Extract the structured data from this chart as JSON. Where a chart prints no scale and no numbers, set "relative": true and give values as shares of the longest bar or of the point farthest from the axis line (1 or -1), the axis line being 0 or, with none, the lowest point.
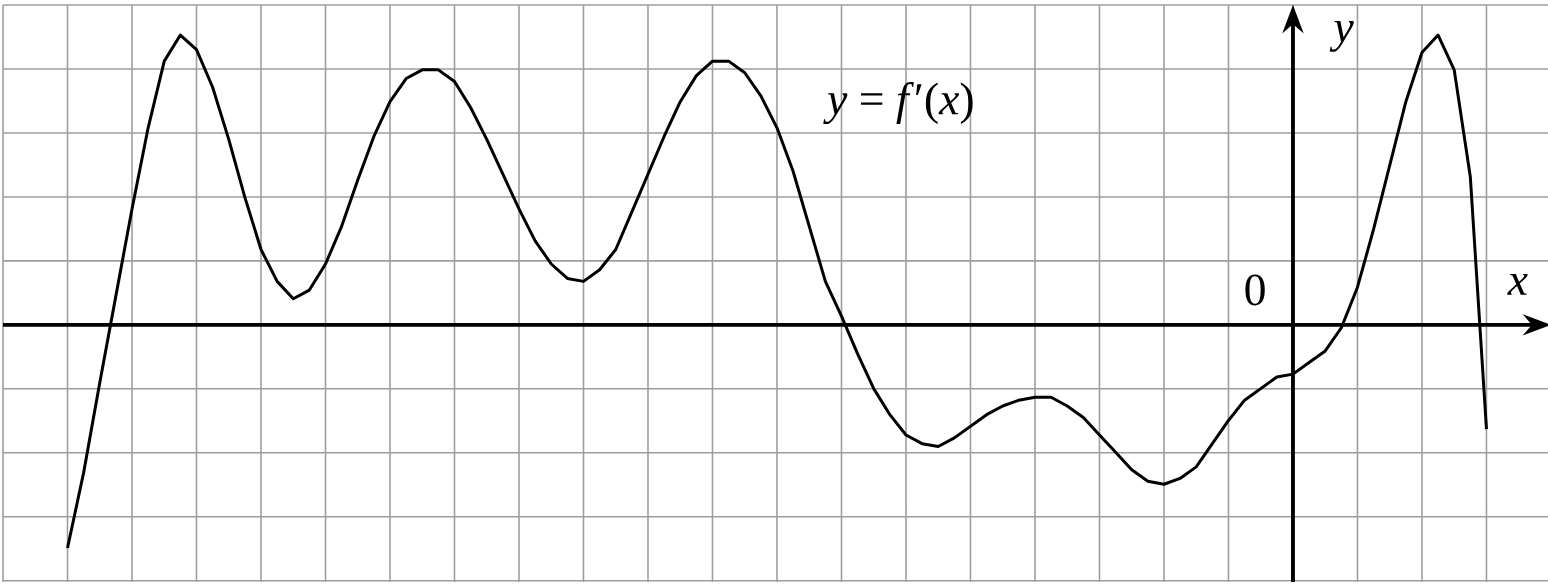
{
  "chart_data": {
    "type": "line",
    "relative": true,
    "xlabel": "x",
    "ylabel": "y",
    "annotations": [
      "0"
    ],
    "categories": [
      null,
      null,
      null,
      null,
      null,
      null,
      null,
      null,
      null,
      null,
      null,
      null,
      null,
      null,
      null,
      null,
      null,
      null,
      null,
      null,
      null,
      null,
      null,
      null,
      null,
      null,
      null,
      null,
      null,
      null,
      null,
      null,
      null,
      null,
      null,
      null,
      null,
      null,
      null,
      null,
      null,
      null,
      null,
      null,
      null,
      null,
      null,
      null,
      null,
      null,
      null,
      null,
      null,
      null,
      null,
      null,
      null,
      null,
      null,
      null,
      null,
      null,
      null,
      null,
      null,
      null,
      null,
      null,
      null,
      null,
      null,
      null,
      null,
      null,
      null,
      null,
      null,
      null,
      null,
      null,
      null,
      null,
      null,
      null,
      null,
      null,
      null,
      null,
      null
    ],
    "series": [
      {
        "name": "*y* = *f*′(*x*)",
        "color": "#000000",
        "values": [
          -0.77,
          -0.51,
          -0.2,
          0.1,
          0.4,
          0.68,
          0.91,
          1,
          0.95,
          0.82,
          0.64,
          0.44,
          0.26,
          0.15,
          0.09,
          0.12,
          0.21,
          0.34,
          0.5,
          0.65,
          0.77,
          0.85,
          0.88,
          0.88,
          0.84,
          0.75,
          0.64,
          0.52,
          0.4,
          0.29,
          0.21,
          0.16,
          0.15,
          0.19,
          0.26,
          0.39,
          0.52,
          0.65,
          0.77,
          0.86,
          0.91,
          0.91,
          0.87,
          0.79,
          0.68,
          0.53,
          0.34,
          0.15,
          0.03,
          -0.1,
          -0.22,
          -0.31,
          -0.38,
          -0.41,
          -0.42,
          -0.39,
          -0.35,
          -0.31,
          -0.28,
          -0.26,
          -0.25,
          -0.25,
          -0.28,
          -0.32,
          -0.38,
          -0.44,
          -0.5,
          -0.54,
          -0.55,
          -0.53,
          -0.49,
          -0.41,
          -0.33,
          -0.26,
          -0.22,
          -0.18,
          -0.17,
          -0.13,
          -0.09,
          -0.01,
          0.13,
          0.33,
          0.55,
          0.77,
          0.94,
          1,
          0.88,
          0.51,
          -0.36
        ]
      }
    ],
    "grid": true
  }
}
